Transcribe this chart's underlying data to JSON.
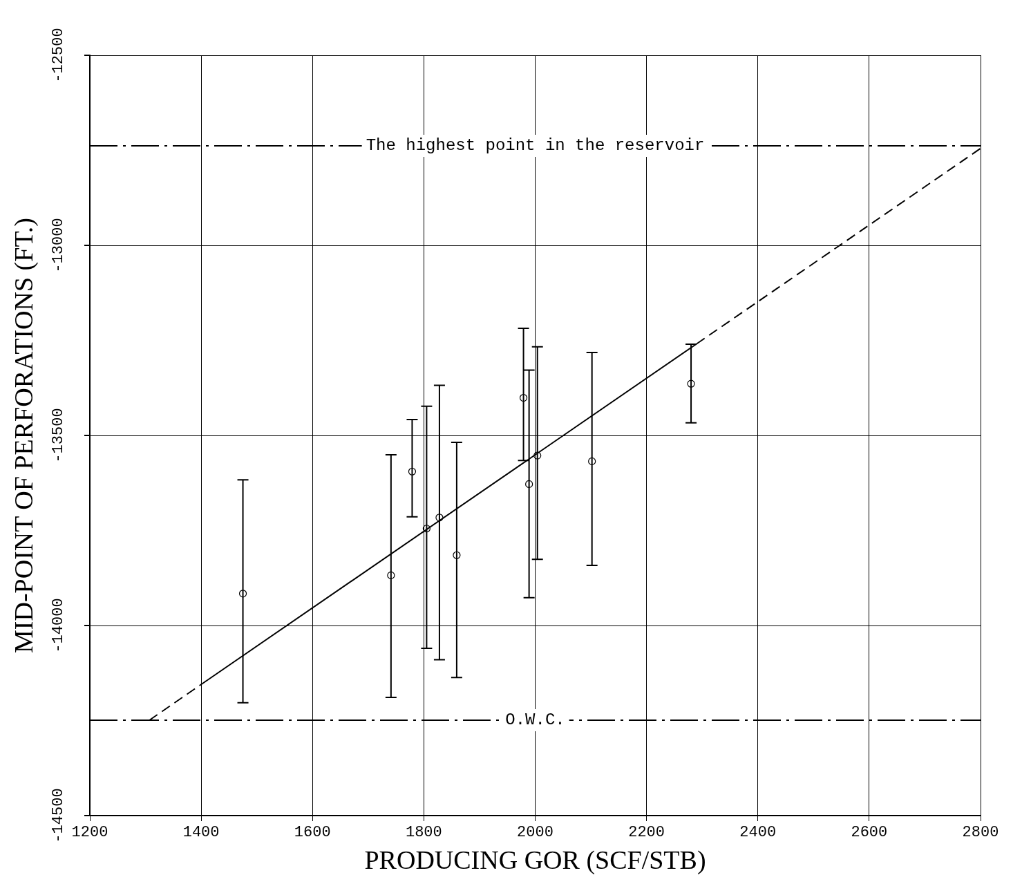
{
  "chart_data": {
    "type": "scatter",
    "xlabel": "PRODUCING GOR (SCF/STB)",
    "ylabel": "MID-POINT OF PERFORATIONS (FT.)",
    "xlim": [
      1200,
      2800
    ],
    "xticks": [
      1200,
      1400,
      1600,
      1800,
      2000,
      2200,
      2400,
      2600,
      2800
    ],
    "ylim": [
      -14500,
      -12500
    ],
    "yticks": [
      -14500,
      -14000,
      -13500,
      -13000,
      -12500
    ],
    "grid": true,
    "legend": false,
    "series": [
      {
        "type": "scatter",
        "color": "#000000",
        "marker": "circle",
        "x": [
          1475,
          1741,
          1779,
          1805,
          1828,
          1859,
          1979,
          1989,
          2004,
          2102,
          2280
        ],
        "values": [
          -13916,
          -13868,
          -13595,
          -13745,
          -13716,
          -13815,
          -13401,
          -13628,
          -13553,
          -13568,
          -13364
        ],
        "errors": [
          [
            -14203,
            -13617
          ],
          [
            -14189,
            -13551
          ],
          [
            -13714,
            -13458
          ],
          [
            -14060,
            -13423
          ],
          [
            -14090,
            -13368
          ],
          [
            -14137,
            -13518
          ],
          [
            -13566,
            -13218
          ],
          [
            -13927,
            -13328
          ],
          [
            -13826,
            -13267
          ],
          [
            -13842,
            -13282
          ],
          [
            -13467,
            -13260
          ]
        ]
      },
      {
        "type": "line",
        "color": "#000000",
        "line_style": "dashed",
        "x": [
          1307,
          1400
        ],
        "values": [
          -14249,
          -14155
        ]
      },
      {
        "type": "line",
        "color": "#000000",
        "line_style": "solid",
        "x": [
          1400,
          2290
        ],
        "values": [
          -14155,
          -13259
        ]
      },
      {
        "type": "line",
        "color": "#000000",
        "line_style": "dashed",
        "x": [
          2290,
          2800
        ],
        "values": [
          -13259,
          -12745
        ]
      }
    ],
    "ref_lines": [
      {
        "axis": "y",
        "value": -14249,
        "label": "O.W.C."
      },
      {
        "axis": "y",
        "value": -12738,
        "label": "The highest point in the reservoir"
      }
    ]
  }
}
